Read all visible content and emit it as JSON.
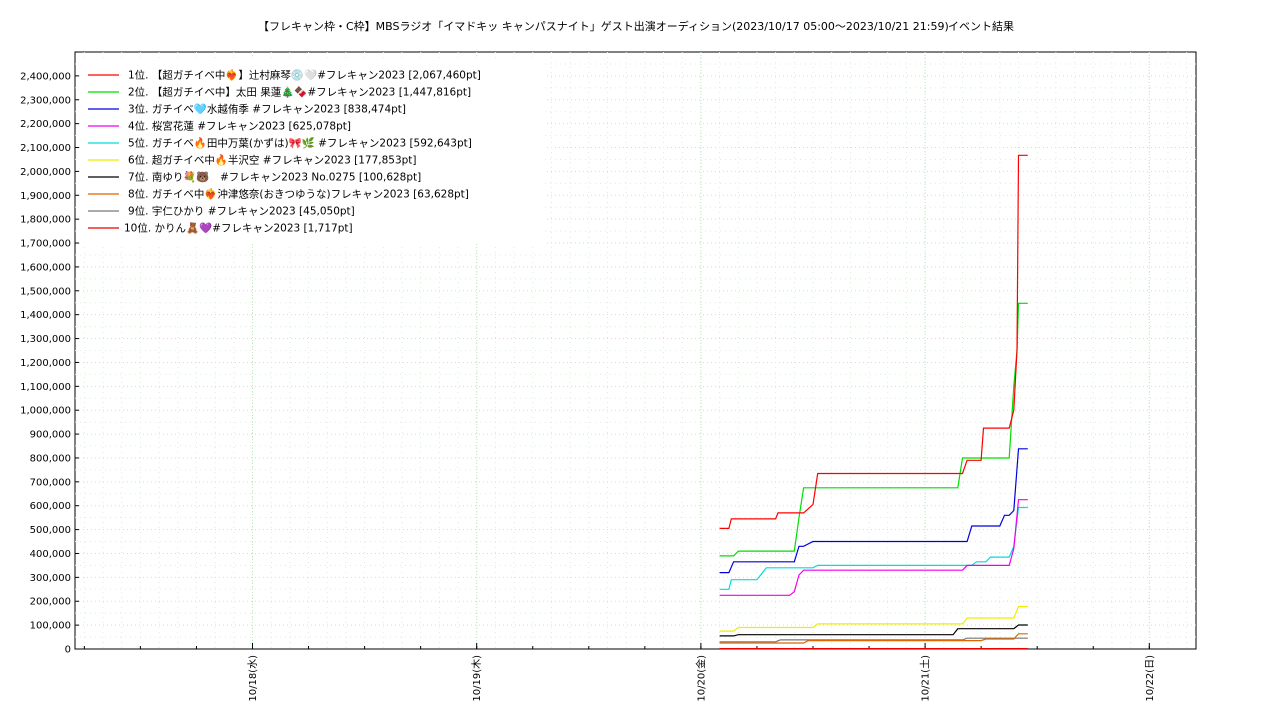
{
  "chart_data": {
    "type": "line",
    "title": "【フレキャン枠・C枠】MBSラジオ「イマドキッ キャンパスナイト」ゲスト出演オーディション(2023/10/17 05:00〜2023/10/21 21:59)",
    "subtitle": "イベント結果",
    "xlim": [
      "2023-10-17 05:00",
      "2023-10-22 05:00"
    ],
    "x_ticks": [
      {
        "value": "2023-10-18 00:00",
        "label": "10/18(水)"
      },
      {
        "value": "2023-10-19 00:00",
        "label": "10/19(木)"
      },
      {
        "value": "2023-10-20 00:00",
        "label": "10/20(金)"
      },
      {
        "value": "2023-10-21 00:00",
        "label": "10/21(土)"
      },
      {
        "value": "2023-10-22 00:00",
        "label": "10/22(日)"
      }
    ],
    "ylim": [
      0,
      2500000
    ],
    "y_ticks": [
      "0",
      "100,000",
      "200,000",
      "300,000",
      "400,000",
      "500,000",
      "600,000",
      "700,000",
      "800,000",
      "900,000",
      "1,000,000",
      "1,100,000",
      "1,200,000",
      "1,300,000",
      "1,400,000",
      "1,500,000",
      "1,600,000",
      "1,700,000",
      "1,800,000",
      "1,900,000",
      "2,000,000",
      "2,100,000",
      "2,200,000",
      "2,300,000",
      "2,400,000"
    ],
    "grid": true,
    "legend_position": "top-left",
    "series": [
      {
        "name": "1位. 【超ガチイベ中❤️‍🔥】辻村麻琴💿🤍#フレキャン2023 [2,067,460pt]",
        "color": "#ff0000",
        "points": [
          [
            "2023-10-20 02:00",
            505000
          ],
          [
            "2023-10-20 03:00",
            505000
          ],
          [
            "2023-10-20 03:15",
            545000
          ],
          [
            "2023-10-20 08:00",
            545000
          ],
          [
            "2023-10-20 08:15",
            570000
          ],
          [
            "2023-10-20 11:00",
            570000
          ],
          [
            "2023-10-20 12:00",
            605000
          ],
          [
            "2023-10-20 12:30",
            735000
          ],
          [
            "2023-10-21 04:00",
            735000
          ],
          [
            "2023-10-21 04:30",
            790000
          ],
          [
            "2023-10-21 06:00",
            790000
          ],
          [
            "2023-10-21 06:15",
            925000
          ],
          [
            "2023-10-21 09:00",
            925000
          ],
          [
            "2023-10-21 09:30",
            1000000
          ],
          [
            "2023-10-21 09:50",
            1250000
          ],
          [
            "2023-10-21 10:00",
            2067460
          ],
          [
            "2023-10-21 11:00",
            2067460
          ]
        ]
      },
      {
        "name": "2位. 【超ガチイベ中】太田 果蓮🎄🍫#フレキャン2023 [1,447,816pt]",
        "color": "#00dd00",
        "points": [
          [
            "2023-10-20 02:00",
            390000
          ],
          [
            "2023-10-20 03:30",
            390000
          ],
          [
            "2023-10-20 04:00",
            410000
          ],
          [
            "2023-10-20 10:00",
            410000
          ],
          [
            "2023-10-20 10:30",
            550000
          ],
          [
            "2023-10-20 11:00",
            675000
          ],
          [
            "2023-10-21 03:30",
            675000
          ],
          [
            "2023-10-21 04:00",
            800000
          ],
          [
            "2023-10-21 09:00",
            800000
          ],
          [
            "2023-10-21 09:30",
            1100000
          ],
          [
            "2023-10-21 09:50",
            1250000
          ],
          [
            "2023-10-21 10:00",
            1447816
          ],
          [
            "2023-10-21 11:00",
            1447816
          ]
        ]
      },
      {
        "name": "3位. ガチイベ🩵水越侑季 #フレキャン2023 [838,474pt]",
        "color": "#0000dd",
        "points": [
          [
            "2023-10-20 02:00",
            320000
          ],
          [
            "2023-10-20 03:00",
            320000
          ],
          [
            "2023-10-20 03:30",
            365000
          ],
          [
            "2023-10-20 10:00",
            365000
          ],
          [
            "2023-10-20 10:30",
            430000
          ],
          [
            "2023-10-20 11:00",
            430000
          ],
          [
            "2023-10-20 12:00",
            450000
          ],
          [
            "2023-10-21 04:30",
            450000
          ],
          [
            "2023-10-21 05:00",
            515000
          ],
          [
            "2023-10-21 08:00",
            515000
          ],
          [
            "2023-10-21 08:30",
            560000
          ],
          [
            "2023-10-21 09:00",
            560000
          ],
          [
            "2023-10-21 09:30",
            580000
          ],
          [
            "2023-10-21 10:00",
            838474
          ],
          [
            "2023-10-21 11:00",
            838474
          ]
        ]
      },
      {
        "name": "4位. 桜宮花蓮 #フレキャン2023 [625,078pt]",
        "color": "#ee00ee",
        "points": [
          [
            "2023-10-20 02:00",
            225000
          ],
          [
            "2023-10-20 09:30",
            225000
          ],
          [
            "2023-10-20 10:00",
            240000
          ],
          [
            "2023-10-20 10:30",
            310000
          ],
          [
            "2023-10-20 11:00",
            330000
          ],
          [
            "2023-10-21 04:00",
            330000
          ],
          [
            "2023-10-21 04:30",
            350000
          ],
          [
            "2023-10-21 09:00",
            350000
          ],
          [
            "2023-10-21 09:30",
            420000
          ],
          [
            "2023-10-21 10:00",
            625078
          ],
          [
            "2023-10-21 11:00",
            625078
          ]
        ]
      },
      {
        "name": "5位. ガチイベ🔥田中万葉(かずは)🎀🌿 #フレキャン2023 [592,643pt]",
        "color": "#00dddd",
        "points": [
          [
            "2023-10-20 02:00",
            250000
          ],
          [
            "2023-10-20 03:00",
            250000
          ],
          [
            "2023-10-20 03:15",
            290000
          ],
          [
            "2023-10-20 06:00",
            290000
          ],
          [
            "2023-10-20 07:00",
            340000
          ],
          [
            "2023-10-20 12:00",
            340000
          ],
          [
            "2023-10-20 12:30",
            350000
          ],
          [
            "2023-10-21 05:00",
            350000
          ],
          [
            "2023-10-21 05:30",
            365000
          ],
          [
            "2023-10-21 06:30",
            365000
          ],
          [
            "2023-10-21 07:00",
            385000
          ],
          [
            "2023-10-21 09:00",
            385000
          ],
          [
            "2023-10-21 09:30",
            430000
          ],
          [
            "2023-10-21 10:00",
            592643
          ],
          [
            "2023-10-21 11:00",
            592643
          ]
        ]
      },
      {
        "name": "6位. 超ガチイベ中🔥半沢空 #フレキャン2023 [177,853pt]",
        "color": "#eeee00",
        "points": [
          [
            "2023-10-20 02:00",
            75000
          ],
          [
            "2023-10-20 03:30",
            75000
          ],
          [
            "2023-10-20 04:00",
            90000
          ],
          [
            "2023-10-20 12:00",
            90000
          ],
          [
            "2023-10-20 12:30",
            105000
          ],
          [
            "2023-10-21 04:00",
            105000
          ],
          [
            "2023-10-21 04:30",
            130000
          ],
          [
            "2023-10-21 09:30",
            130000
          ],
          [
            "2023-10-21 10:00",
            177853
          ],
          [
            "2023-10-21 11:00",
            177853
          ]
        ]
      },
      {
        "name": "7位. 南ゆり💐🐻　#フレキャン2023 No.0275 [100,628pt]",
        "color": "#000000",
        "points": [
          [
            "2023-10-20 02:00",
            55000
          ],
          [
            "2023-10-20 03:30",
            55000
          ],
          [
            "2023-10-20 04:00",
            60000
          ],
          [
            "2023-10-21 03:00",
            60000
          ],
          [
            "2023-10-21 03:30",
            85000
          ],
          [
            "2023-10-21 09:30",
            85000
          ],
          [
            "2023-10-21 10:00",
            100628
          ],
          [
            "2023-10-21 11:00",
            100628
          ]
        ]
      },
      {
        "name": "8位. ガチイベ中❤️‍🔥沖津悠奈(おきつゆうな)フレキャン2023 [63,628pt]",
        "color": "#dd6600",
        "points": [
          [
            "2023-10-20 02:00",
            25000
          ],
          [
            "2023-10-20 11:00",
            25000
          ],
          [
            "2023-10-20 11:30",
            35000
          ],
          [
            "2023-10-21 06:00",
            35000
          ],
          [
            "2023-10-21 06:30",
            42000
          ],
          [
            "2023-10-21 09:30",
            42000
          ],
          [
            "2023-10-21 10:00",
            63628
          ],
          [
            "2023-10-21 11:00",
            63628
          ]
        ]
      },
      {
        "name": "9位. 宇仁ひかり #フレキャン2023 [45,050pt]",
        "color": "#777777",
        "points": [
          [
            "2023-10-20 02:00",
            30000
          ],
          [
            "2023-10-20 08:00",
            30000
          ],
          [
            "2023-10-20 08:30",
            38000
          ],
          [
            "2023-10-21 04:00",
            38000
          ],
          [
            "2023-10-21 04:30",
            45050
          ],
          [
            "2023-10-21 11:00",
            45050
          ]
        ]
      },
      {
        "name": "10位. かりん🧸💜#フレキャン2023 [1,717pt]",
        "color": "#ee0000",
        "points": [
          [
            "2023-10-20 02:00",
            1717
          ],
          [
            "2023-10-21 11:00",
            1717
          ]
        ]
      }
    ]
  }
}
